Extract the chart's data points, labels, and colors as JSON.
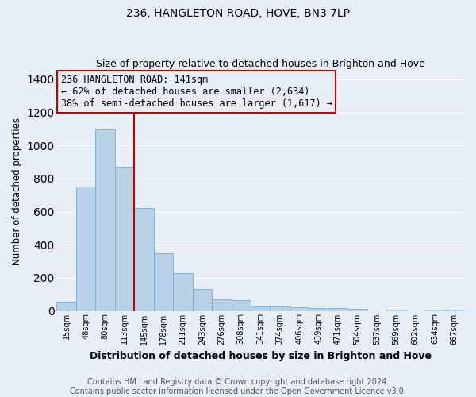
{
  "title": "236, HANGLETON ROAD, HOVE, BN3 7LP",
  "subtitle": "Size of property relative to detached houses in Brighton and Hove",
  "xlabel": "Distribution of detached houses by size in Brighton and Hove",
  "ylabel": "Number of detached properties",
  "footer_line1": "Contains HM Land Registry data © Crown copyright and database right 2024.",
  "footer_line2": "Contains public sector information licensed under the Open Government Licence v3.0.",
  "bin_labels": [
    "15sqm",
    "48sqm",
    "80sqm",
    "113sqm",
    "145sqm",
    "178sqm",
    "211sqm",
    "243sqm",
    "276sqm",
    "308sqm",
    "341sqm",
    "374sqm",
    "406sqm",
    "439sqm",
    "471sqm",
    "504sqm",
    "537sqm",
    "569sqm",
    "602sqm",
    "634sqm",
    "667sqm"
  ],
  "bar_values": [
    55,
    750,
    1095,
    870,
    620,
    350,
    230,
    130,
    70,
    65,
    25,
    25,
    20,
    15,
    15,
    10,
    0,
    5,
    0,
    5,
    5
  ],
  "bar_color": "#b8d0e8",
  "bar_edge_color": "#7aadd0",
  "reference_line_color": "#cc0000",
  "annotation_text": "236 HANGLETON ROAD: 141sqm\n← 62% of detached houses are smaller (2,634)\n38% of semi-detached houses are larger (1,617) →",
  "annotation_box_edge_color": "#cc0000",
  "annotation_fontsize": 8.5,
  "ylim": [
    0,
    1450
  ],
  "yticks": [
    0,
    200,
    400,
    600,
    800,
    1000,
    1200,
    1400
  ],
  "background_color": "#e8eef6",
  "grid_color": "#ffffff",
  "title_fontsize": 10,
  "subtitle_fontsize": 9,
  "xlabel_fontsize": 9,
  "ylabel_fontsize": 8.5,
  "footer_fontsize": 7
}
